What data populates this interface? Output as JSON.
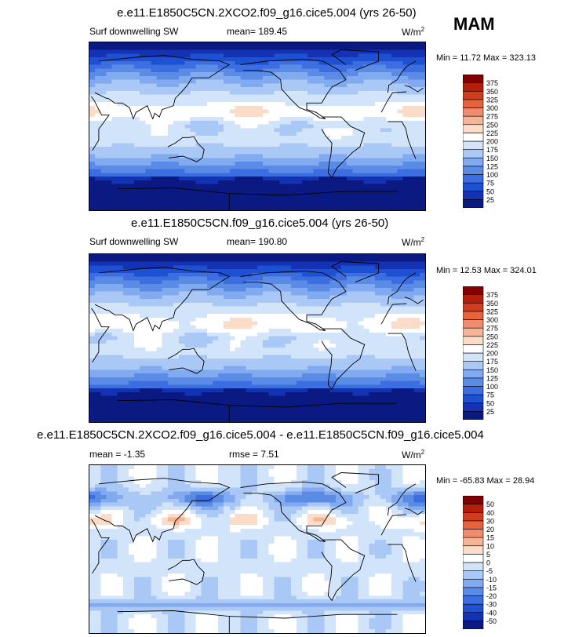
{
  "season": "MAM",
  "panels": [
    {
      "title": "e.e11.E1850C5CN.2XCO2.f09_g16.cice5.004 (yrs 26-50)",
      "left_label": "Surf downwelling SW",
      "mid_label": "mean= 189.45",
      "units": "W/m",
      "units_sup": "2",
      "minmax": "Min = 11.72 Max = 323.13",
      "scale": "abs"
    },
    {
      "title": "e.e11.E1850C5CN.f09_g16.cice5.004 (yrs 26-50)",
      "left_label": "Surf downwelling SW",
      "mid_label": "mean= 190.80",
      "units": "W/m",
      "units_sup": "2",
      "minmax": "Min = 12.53 Max = 324.01",
      "scale": "abs"
    },
    {
      "title": "e.e11.E1850C5CN.2XCO2.f09_g16.cice5.004 - e.e11.E1850C5CN.f09_g16.cice5.004",
      "left_label": "mean = -1.35",
      "mid_label": "rmse = 7.51",
      "units": "W/m",
      "units_sup": "2",
      "minmax": "Min = -65.83 Max = 28.94",
      "scale": "diff"
    }
  ],
  "chart_data": [
    {
      "type": "heatmap",
      "title": "e.e11.E1850C5CN.2XCO2.f09_g16.cice5.004 (yrs 26-50)",
      "variable": "Surf downwelling SW",
      "units": "W/m2",
      "mean": 189.45,
      "min": 11.72,
      "max": 323.13,
      "levels": [
        25,
        50,
        75,
        100,
        125,
        150,
        175,
        200,
        225,
        250,
        275,
        300,
        325,
        350,
        375
      ],
      "colors": [
        "#0a1a82",
        "#1432b4",
        "#1e50d2",
        "#3c6ee1",
        "#5a8ce6",
        "#82aaf0",
        "#aac8f5",
        "#d2e4fa",
        "#ffffff",
        "#fadcc8",
        "#f5b496",
        "#f08c6e",
        "#e6643c",
        "#d23c1e",
        "#b41e0a",
        "#820000"
      ]
    },
    {
      "type": "heatmap",
      "title": "e.e11.E1850C5CN.f09_g16.cice5.004 (yrs 26-50)",
      "variable": "Surf downwelling SW",
      "units": "W/m2",
      "mean": 190.8,
      "min": 12.53,
      "max": 324.01,
      "levels": [
        25,
        50,
        75,
        100,
        125,
        150,
        175,
        200,
        225,
        250,
        275,
        300,
        325,
        350,
        375
      ],
      "colors": [
        "#0a1a82",
        "#1432b4",
        "#1e50d2",
        "#3c6ee1",
        "#5a8ce6",
        "#82aaf0",
        "#aac8f5",
        "#d2e4fa",
        "#ffffff",
        "#fadcc8",
        "#f5b496",
        "#f08c6e",
        "#e6643c",
        "#d23c1e",
        "#b41e0a",
        "#820000"
      ]
    },
    {
      "type": "heatmap",
      "title": "e.e11.E1850C5CN.2XCO2.f09_g16.cice5.004 - e.e11.E1850C5CN.f09_g16.cice5.004",
      "units": "W/m2",
      "mean": -1.35,
      "rmse": 7.51,
      "min": -65.83,
      "max": 28.94,
      "levels": [
        -50,
        -40,
        -30,
        -20,
        -15,
        -10,
        -5,
        0,
        5,
        10,
        15,
        20,
        30,
        40,
        50
      ],
      "colors": [
        "#0a1a82",
        "#1432b4",
        "#1e50d2",
        "#3c6ee1",
        "#5a8ce6",
        "#82aaf0",
        "#aac8f5",
        "#d2e4fa",
        "#ffffff",
        "#fadcc8",
        "#f5b496",
        "#f08c6e",
        "#e6643c",
        "#d23c1e",
        "#b41e0a",
        "#820000"
      ]
    }
  ]
}
